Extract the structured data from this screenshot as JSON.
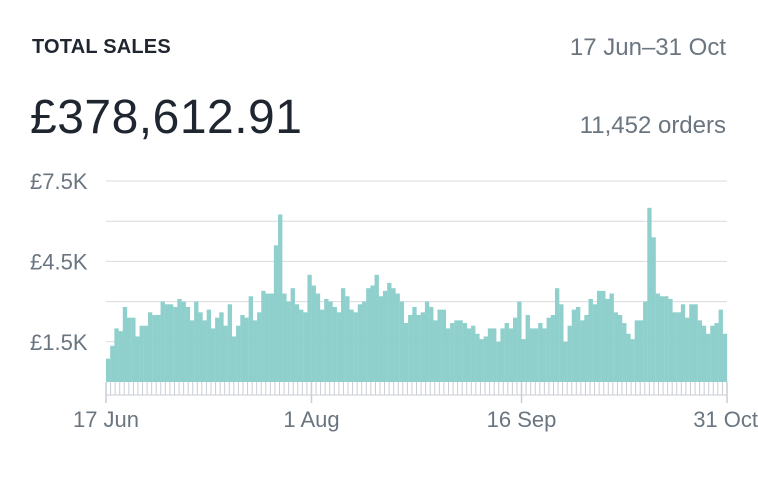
{
  "header": {
    "title": "TOTAL SALES",
    "date_range": "17 Jun–31 Oct",
    "total": "£378,612.91",
    "orders": "11,452 orders"
  },
  "colors": {
    "bar": "#8fd0cc",
    "grid": "#d7dbdf",
    "axis": "#c9ced3",
    "tick_text": "#6b7580"
  },
  "chart_data": {
    "type": "bar",
    "title": "TOTAL SALES",
    "start_date": "2019-06-17",
    "end_date": "2019-10-31",
    "ylim": [
      0,
      7500
    ],
    "y_ticks": [
      {
        "value": 7500,
        "label": "£7.5K"
      },
      {
        "value": 4500,
        "label": "£4.5K"
      },
      {
        "value": 1500,
        "label": "£1.5K"
      }
    ],
    "x_ticks": [
      {
        "date": "2019-06-17",
        "label": "17 Jun"
      },
      {
        "date": "2019-08-01",
        "label": "1 Aug"
      },
      {
        "date": "2019-09-16",
        "label": "16 Sep"
      },
      {
        "date": "2019-10-31",
        "label": "31 Oct"
      }
    ],
    "values": [
      870,
      1350,
      2000,
      1900,
      2800,
      2400,
      2400,
      1700,
      2100,
      2100,
      2600,
      2500,
      2500,
      3000,
      2900,
      2900,
      2800,
      3100,
      3000,
      2800,
      2300,
      3000,
      2600,
      2300,
      2700,
      2000,
      2400,
      2600,
      2100,
      2900,
      1700,
      2100,
      2500,
      2400,
      3200,
      2300,
      2600,
      3400,
      3300,
      3300,
      5100,
      6250,
      3300,
      3000,
      3500,
      2900,
      2700,
      2600,
      4000,
      3600,
      3300,
      2700,
      3100,
      3000,
      2800,
      2600,
      3500,
      3200,
      2700,
      2600,
      2900,
      3000,
      3500,
      3600,
      4000,
      3200,
      3400,
      3700,
      3500,
      3300,
      3000,
      2200,
      2500,
      2800,
      2500,
      2600,
      3000,
      2800,
      2300,
      2700,
      2700,
      2000,
      2200,
      2300,
      2300,
      2200,
      2000,
      2100,
      1800,
      1600,
      1700,
      2000,
      2000,
      1500,
      2000,
      2200,
      2000,
      2400,
      3000,
      1600,
      2500,
      2000,
      2000,
      2200,
      2000,
      2400,
      2500,
      3500,
      2900,
      1500,
      2100,
      2700,
      2800,
      2300,
      2500,
      3100,
      2900,
      3400,
      3400,
      3100,
      3300,
      2600,
      2500,
      2200,
      1800,
      1600,
      2300,
      2300,
      3000,
      6500,
      5400,
      3300,
      3200,
      3200,
      3100,
      2600,
      2600,
      2900,
      2400,
      2900,
      2900,
      2300,
      2100,
      1800,
      2100,
      2200,
      2700,
      1800
    ]
  }
}
